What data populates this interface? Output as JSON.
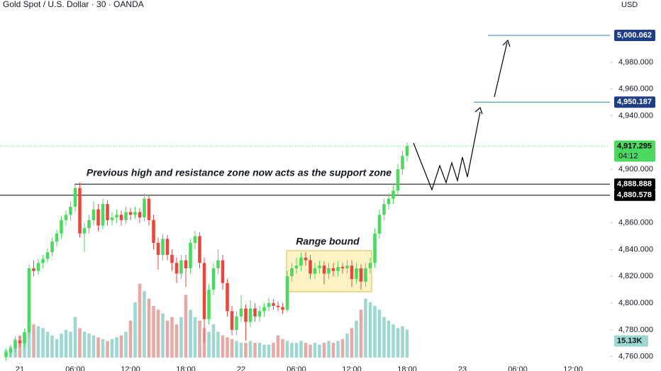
{
  "chart_data": {
    "type": "candlestick",
    "title": "Gold Spot / U.S. Dollar · 30 · OANDA",
    "currency": "USD",
    "candles": [
      [
        4760,
        4766,
        4757,
        4763
      ],
      [
        4763,
        4769,
        4760,
        4766
      ],
      [
        4766,
        4775,
        4763,
        4772
      ],
      [
        4772,
        4775,
        4767,
        4770
      ],
      [
        4770,
        4781,
        4767,
        4778
      ],
      [
        4778,
        4829,
        4775,
        4826
      ],
      [
        4826,
        4832,
        4820,
        4824
      ],
      [
        4824,
        4833,
        4821,
        4830
      ],
      [
        4830,
        4836,
        4826,
        4833
      ],
      [
        4833,
        4841,
        4830,
        4838
      ],
      [
        4838,
        4849,
        4835,
        4846
      ],
      [
        4846,
        4855,
        4842,
        4852
      ],
      [
        4852,
        4865,
        4848,
        4862
      ],
      [
        4862,
        4869,
        4858,
        4866
      ],
      [
        4866,
        4876,
        4862,
        4872
      ],
      [
        4872,
        4889,
        4868,
        4886
      ],
      [
        4886,
        4890,
        4849,
        4852
      ],
      [
        4852,
        4860,
        4838,
        4856
      ],
      [
        4856,
        4866,
        4852,
        4862
      ],
      [
        4862,
        4876,
        4858,
        4870
      ],
      [
        4870,
        4874,
        4854,
        4858
      ],
      [
        4858,
        4878,
        4855,
        4874
      ],
      [
        4874,
        4877,
        4858,
        4862
      ],
      [
        4862,
        4868,
        4858,
        4864
      ],
      [
        4864,
        4870,
        4860,
        4866
      ],
      [
        4866,
        4869,
        4858,
        4862
      ],
      [
        4862,
        4872,
        4859,
        4868
      ],
      [
        4868,
        4871,
        4862,
        4866
      ],
      [
        4866,
        4872,
        4863,
        4868
      ],
      [
        4868,
        4871,
        4860,
        4864
      ],
      [
        4864,
        4882,
        4861,
        4878
      ],
      [
        4878,
        4881,
        4858,
        4862
      ],
      [
        4862,
        4866,
        4840,
        4845
      ],
      [
        4845,
        4849,
        4825,
        4836
      ],
      [
        4836,
        4852,
        4832,
        4848
      ],
      [
        4848,
        4851,
        4832,
        4836
      ],
      [
        4836,
        4840,
        4824,
        4830
      ],
      [
        4830,
        4834,
        4815,
        4822
      ],
      [
        4822,
        4836,
        4818,
        4832
      ],
      [
        4832,
        4836,
        4812,
        4826
      ],
      [
        4826,
        4848,
        4822,
        4845
      ],
      [
        4845,
        4854,
        4840,
        4850
      ],
      [
        4850,
        4853,
        4826,
        4830
      ],
      [
        4830,
        4834,
        4770,
        4788
      ],
      [
        4788,
        4814,
        4784,
        4810
      ],
      [
        4810,
        4830,
        4806,
        4826
      ],
      [
        4826,
        4840,
        4822,
        4832
      ],
      [
        4832,
        4836,
        4810,
        4815
      ],
      [
        4815,
        4818,
        4790,
        4794
      ],
      [
        4794,
        4798,
        4776,
        4780
      ],
      [
        4780,
        4794,
        4776,
        4790
      ],
      [
        4790,
        4806,
        4786,
        4796
      ],
      [
        4796,
        4799,
        4772,
        4786
      ],
      [
        4786,
        4802,
        4782,
        4796
      ],
      [
        4796,
        4800,
        4786,
        4790
      ],
      [
        4790,
        4798,
        4786,
        4794
      ],
      [
        4794,
        4800,
        4790,
        4797
      ],
      [
        4797,
        4804,
        4794,
        4800
      ],
      [
        4800,
        4803,
        4795,
        4798
      ],
      [
        4798,
        4801,
        4794,
        4797
      ],
      [
        4797,
        4800,
        4792,
        4795
      ],
      [
        4795,
        4824,
        4793,
        4820
      ],
      [
        4820,
        4830,
        4816,
        4826
      ],
      [
        4826,
        4834,
        4822,
        4828
      ],
      [
        4828,
        4838,
        4824,
        4834
      ],
      [
        4834,
        4838,
        4828,
        4832
      ],
      [
        4832,
        4836,
        4818,
        4822
      ],
      [
        4822,
        4830,
        4818,
        4826
      ],
      [
        4826,
        4832,
        4822,
        4828
      ],
      [
        4828,
        4831,
        4814,
        4822
      ],
      [
        4822,
        4830,
        4818,
        4826
      ],
      [
        4826,
        4830,
        4820,
        4824
      ],
      [
        4824,
        4831,
        4820,
        4827
      ],
      [
        4827,
        4830,
        4822,
        4826
      ],
      [
        4826,
        4832,
        4822,
        4828
      ],
      [
        4828,
        4832,
        4812,
        4818
      ],
      [
        4818,
        4830,
        4814,
        4826
      ],
      [
        4826,
        4829,
        4810,
        4816
      ],
      [
        4816,
        4830,
        4812,
        4826
      ],
      [
        4826,
        4834,
        4822,
        4830
      ],
      [
        4830,
        4856,
        4826,
        4852
      ],
      [
        4852,
        4870,
        4848,
        4866
      ],
      [
        4866,
        4878,
        4862,
        4874
      ],
      [
        4874,
        4882,
        4870,
        4878
      ],
      [
        4878,
        4888,
        4874,
        4884
      ],
      [
        4884,
        4904,
        4880,
        4900
      ],
      [
        4900,
        4914,
        4896,
        4910
      ],
      [
        4910,
        4920,
        4906,
        4917.295
      ]
    ],
    "volume": [
      4,
      6,
      10,
      12,
      14,
      24,
      18,
      17,
      16,
      14,
      12,
      10,
      13,
      15,
      14,
      22,
      16,
      14,
      13,
      12,
      11,
      10,
      9,
      10,
      11,
      12,
      14,
      20,
      30,
      40,
      36,
      32,
      28,
      26,
      24,
      20,
      22,
      18,
      22,
      34,
      26,
      22,
      20,
      16,
      14,
      18,
      14,
      12,
      11,
      10,
      9,
      8,
      8,
      9,
      8,
      8,
      7,
      7,
      8,
      12,
      10,
      9,
      8,
      8,
      9,
      8,
      7,
      8,
      7,
      8,
      9,
      8,
      9,
      10,
      13,
      16,
      20,
      26,
      32,
      30,
      28,
      26,
      22,
      20,
      18,
      16,
      17,
      15.13
    ],
    "volume_label": "15.13K",
    "up_color": "#4cd95f",
    "down_color": "#e8473f",
    "volume_up_color": "#9ed6d0",
    "volume_down_color": "#e6aaa6",
    "xlim": [
      -1.31,
      131
    ],
    "xticks": [
      {
        "value": 3,
        "label": "21"
      },
      {
        "value": 15,
        "label": "06:00"
      },
      {
        "value": 27,
        "label": "12:00"
      },
      {
        "value": 39,
        "label": "18:00"
      },
      {
        "value": 51,
        "label": "22"
      },
      {
        "value": 63,
        "label": "06:00"
      },
      {
        "value": 75,
        "label": "12:00"
      },
      {
        "value": 87,
        "label": "18:00"
      },
      {
        "value": 99,
        "label": "23"
      },
      {
        "value": 111,
        "label": "06:00"
      },
      {
        "value": 123,
        "label": "12:00"
      }
    ],
    "ylim": [
      4759.3,
      5026.5
    ],
    "yticks": [
      {
        "value": 4760,
        "label": "4,760.000"
      },
      {
        "value": 4780,
        "label": "4,780.000"
      },
      {
        "value": 4800,
        "label": "4,800.000"
      },
      {
        "value": 4820,
        "label": "4,820.000"
      },
      {
        "value": 4840,
        "label": "4,840.000"
      },
      {
        "value": 4860,
        "label": "4,860.000"
      },
      {
        "value": 4900,
        "label": "4,900.000"
      },
      {
        "value": 4940,
        "label": "4,940.000"
      },
      {
        "value": 4960,
        "label": "4,960.000"
      },
      {
        "value": 4980,
        "label": "4,980.000"
      }
    ],
    "y2lim": [
      0,
      194
    ],
    "levels": [
      {
        "value": 5000.062,
        "label": "5,000.062",
        "color": "#1e3f86"
      },
      {
        "value": 4950.187,
        "label": "4,950.187",
        "color": "#1e3f86"
      },
      {
        "value": 4888.888,
        "label": "4,888.888",
        "color": "#000000"
      },
      {
        "value": 4880.578,
        "label": "4,880.578",
        "color": "#000000"
      }
    ],
    "last_price": {
      "value": 4917.295,
      "label": "4,917.295",
      "countdown": "04:12",
      "color": "#4cd95f"
    },
    "annotations": [
      "Previous high and resistance zone now acts as the support zone",
      "Range bound"
    ]
  }
}
